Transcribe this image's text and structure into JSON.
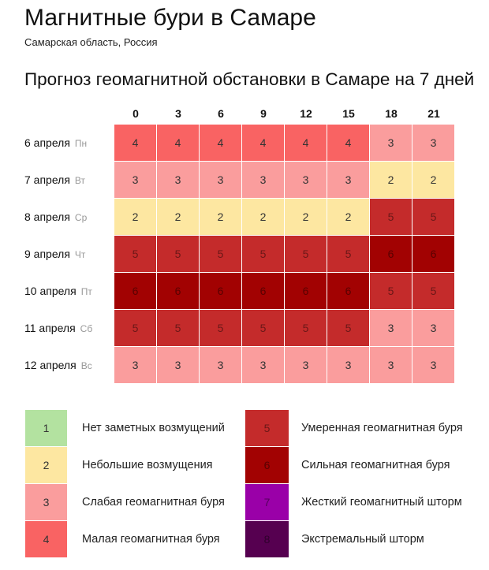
{
  "header": {
    "title": "Магнитные бури в Самаре",
    "subtitle": "Самарская область, Россия"
  },
  "section_title": "Прогноз геомагнитной обстановки в Самаре на 7 дней",
  "chart_data": {
    "type": "heatmap",
    "title": "Прогноз геомагнитной обстановки в Самаре на 7 дней",
    "columns": [
      "0",
      "3",
      "6",
      "9",
      "12",
      "15",
      "18",
      "21"
    ],
    "rows": [
      {
        "date": "6 апреля",
        "dow": "Пн",
        "values": [
          4,
          4,
          4,
          4,
          4,
          4,
          3,
          3
        ]
      },
      {
        "date": "7 апреля",
        "dow": "Вт",
        "values": [
          3,
          3,
          3,
          3,
          3,
          3,
          2,
          2
        ]
      },
      {
        "date": "8 апреля",
        "dow": "Ср",
        "values": [
          2,
          2,
          2,
          2,
          2,
          2,
          5,
          5
        ]
      },
      {
        "date": "9 апреля",
        "dow": "Чт",
        "values": [
          5,
          5,
          5,
          5,
          5,
          5,
          6,
          6
        ]
      },
      {
        "date": "10 апреля",
        "dow": "Пт",
        "values": [
          6,
          6,
          6,
          6,
          6,
          6,
          5,
          5
        ]
      },
      {
        "date": "11 апреля",
        "dow": "Сб",
        "values": [
          5,
          5,
          5,
          5,
          5,
          5,
          3,
          3
        ]
      },
      {
        "date": "12 апреля",
        "dow": "Вс",
        "values": [
          3,
          3,
          3,
          3,
          3,
          3,
          3,
          3
        ]
      }
    ],
    "legend": [
      {
        "level": "1",
        "label": "Нет заметных возмущений",
        "color": "#b3e2a0"
      },
      {
        "level": "2",
        "label": "Небольшие возмущения",
        "color": "#fde7a1"
      },
      {
        "level": "3",
        "label": "Слабая геомагнитная буря",
        "color": "#fa9d9d"
      },
      {
        "level": "4",
        "label": "Малая геомагнитная буря",
        "color": "#f96363"
      },
      {
        "level": "5",
        "label": "Умеренная геомагнитная буря",
        "color": "#c42b2b"
      },
      {
        "level": "6",
        "label": "Сильная геомагнитная буря",
        "color": "#a20202"
      },
      {
        "level": "7",
        "label": "Жесткий геомагнитный шторм",
        "color": "#9a00a8"
      },
      {
        "level": "8",
        "label": "Экстремальный шторм",
        "color": "#560050"
      }
    ]
  }
}
